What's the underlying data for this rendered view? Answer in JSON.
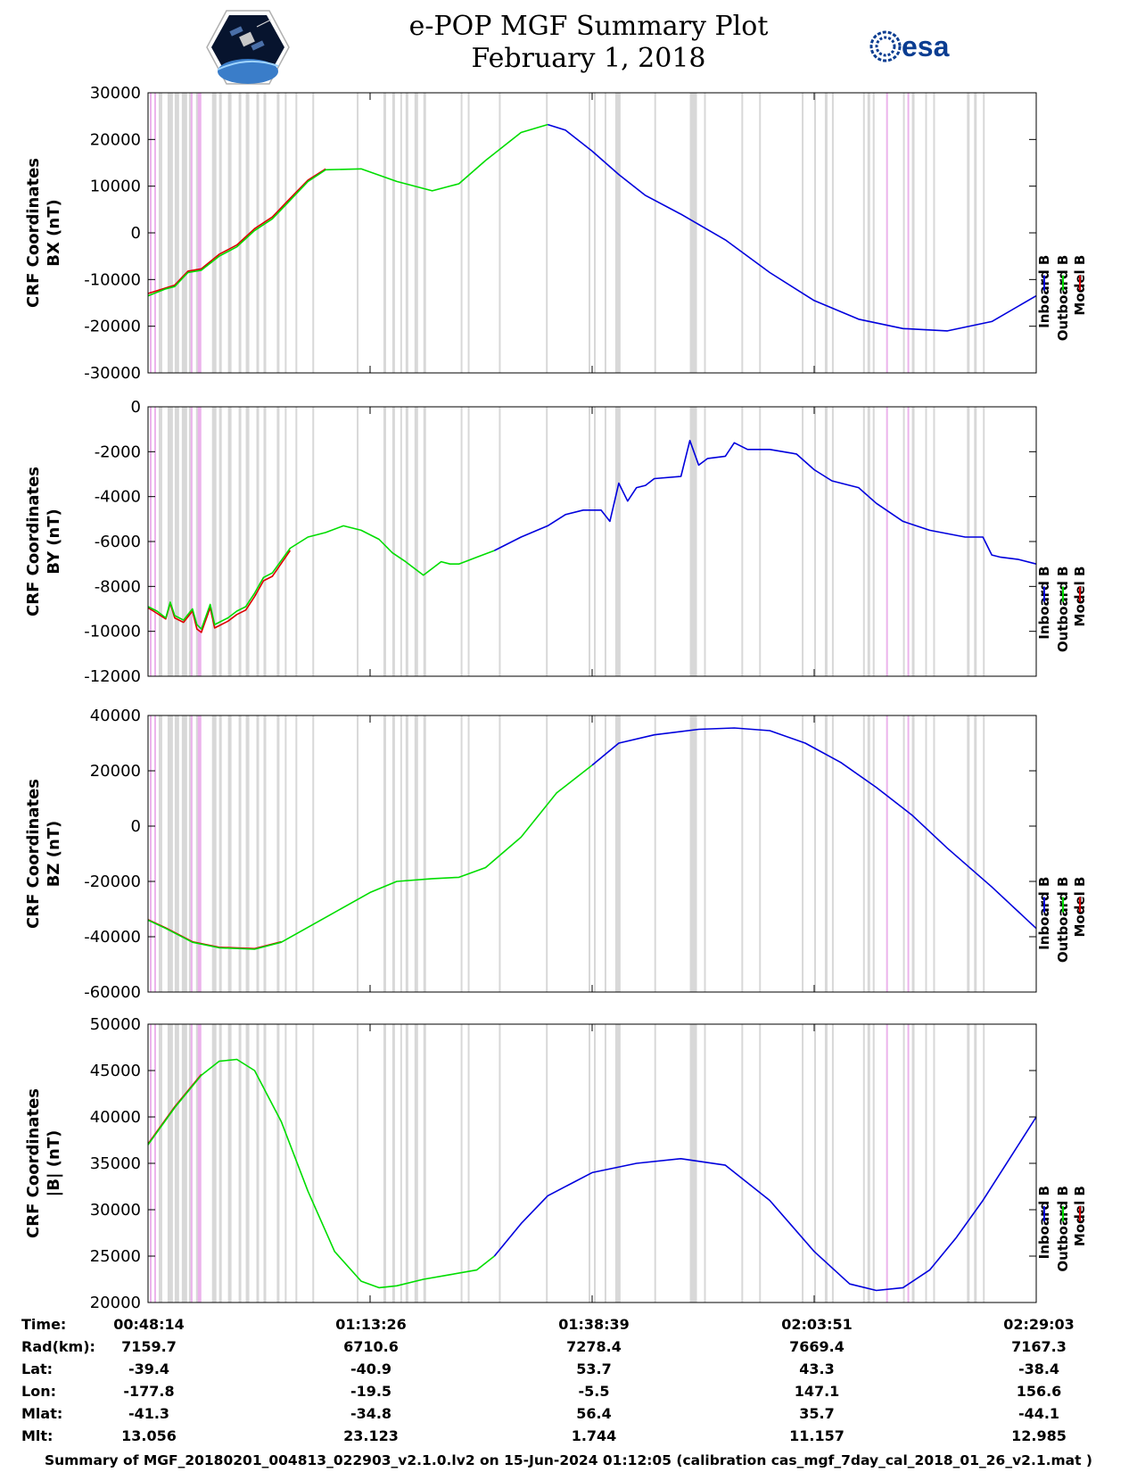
{
  "title": {
    "line1": "e-POP MGF Summary Plot",
    "line2": "February 1, 2018"
  },
  "logos": {
    "left": "cassiope-mission-patch",
    "right": "esa"
  },
  "legend_labels": [
    "Inboard B",
    "Outboard B",
    "Model B"
  ],
  "colors": {
    "inboard": "#0000dd",
    "outboard": "#00dd00",
    "model": "#dd0000",
    "gray_band": "#d8d8d8",
    "pink_band": "#ecb3ec"
  },
  "chart_data": [
    {
      "type": "line",
      "ylabel_line1": "CRF Coordinates",
      "ylabel_line2": "BX (nT)",
      "ylim": [
        -30000,
        30000
      ],
      "yticks": [
        -30000,
        -20000,
        -10000,
        0,
        10000,
        20000,
        30000
      ],
      "xlim": [
        0,
        100
      ],
      "switch_x": 45,
      "series": [
        {
          "name": "Outboard B",
          "x": [
            0,
            2,
            3,
            4.5,
            6,
            8,
            10,
            12,
            14,
            16,
            18,
            20,
            24,
            28,
            32,
            35,
            38,
            42,
            45
          ],
          "values": [
            -13500,
            -12000,
            -11500,
            -8500,
            -8000,
            -5000,
            -3000,
            500,
            3000,
            7000,
            11000,
            13500,
            13700,
            11000,
            9000,
            10500,
            15500,
            21500,
            23200
          ]
        },
        {
          "name": "Inboard B",
          "x": [
            45,
            47,
            50,
            53,
            56,
            60,
            65,
            70,
            75,
            80,
            85,
            90,
            95,
            100
          ],
          "values": [
            23200,
            22000,
            17500,
            12500,
            8000,
            4000,
            -1500,
            -8500,
            -14500,
            -18500,
            -20500,
            -21000,
            -19000,
            -13500
          ]
        },
        {
          "name": "Model B",
          "x": [
            0,
            2,
            3,
            4.5,
            6,
            8,
            10,
            12,
            14,
            16,
            18,
            20
          ],
          "values": [
            -13000,
            -11800,
            -11200,
            -8200,
            -7700,
            -4600,
            -2600,
            900,
            3400,
            7400,
            11300,
            13700
          ]
        }
      ]
    },
    {
      "type": "line",
      "ylabel_line1": "CRF Coordinates",
      "ylabel_line2": "BY (nT)",
      "ylim": [
        -12000,
        0
      ],
      "yticks": [
        -12000,
        -10000,
        -8000,
        -6000,
        -4000,
        -2000,
        0
      ],
      "xlim": [
        0,
        100
      ],
      "switch_x": 39,
      "series": [
        {
          "name": "Outboard B",
          "x": [
            0,
            1,
            2,
            2.5,
            3,
            4,
            5,
            5.5,
            6,
            7,
            7.5,
            8,
            9,
            10,
            11,
            12,
            13,
            14,
            16,
            18,
            20,
            22,
            24,
            26,
            27.5,
            29,
            31,
            33,
            34,
            35,
            37,
            39
          ],
          "values": [
            -8900,
            -9100,
            -9400,
            -8700,
            -9300,
            -9500,
            -9000,
            -9700,
            -9900,
            -8800,
            -9700,
            -9600,
            -9400,
            -9100,
            -8900,
            -8300,
            -7600,
            -7400,
            -6300,
            -5800,
            -5600,
            -5300,
            -5500,
            -5900,
            -6500,
            -6900,
            -7500,
            -6900,
            -7000,
            -7000,
            -6700,
            -6400
          ]
        },
        {
          "name": "Inboard B",
          "x": [
            39,
            42,
            45,
            47,
            49,
            51,
            52,
            53,
            54,
            55,
            56,
            57,
            60,
            61,
            62,
            63,
            65,
            66,
            67.5,
            70,
            73,
            75,
            77,
            80,
            82,
            85,
            88,
            92,
            94,
            95,
            96,
            98,
            100
          ],
          "values": [
            -6400,
            -5800,
            -5300,
            -4800,
            -4600,
            -4600,
            -5100,
            -3400,
            -4200,
            -3600,
            -3500,
            -3200,
            -3100,
            -1500,
            -2600,
            -2300,
            -2200,
            -1600,
            -1900,
            -1900,
            -2100,
            -2800,
            -3300,
            -3600,
            -4300,
            -5100,
            -5500,
            -5800,
            -5800,
            -6600,
            -6700,
            -6800,
            -7000
          ]
        },
        {
          "name": "Model B",
          "x": [
            0,
            1,
            2,
            2.5,
            3,
            4,
            5,
            5.5,
            6,
            7,
            7.5,
            8,
            9,
            10,
            11,
            12,
            13,
            14,
            16
          ],
          "values": [
            -8950,
            -9200,
            -9450,
            -8750,
            -9400,
            -9600,
            -9100,
            -9900,
            -10050,
            -8950,
            -9850,
            -9750,
            -9550,
            -9250,
            -9050,
            -8450,
            -7750,
            -7550,
            -6400
          ]
        }
      ]
    },
    {
      "type": "line",
      "ylabel_line1": "CRF Coordinates",
      "ylabel_line2": "BZ (nT)",
      "ylim": [
        -60000,
        40000
      ],
      "yticks": [
        -60000,
        -40000,
        -20000,
        0,
        20000,
        40000
      ],
      "xlim": [
        0,
        100
      ],
      "switch_x": 50,
      "series": [
        {
          "name": "Outboard B",
          "x": [
            0,
            2,
            5,
            8,
            12,
            15,
            20,
            25,
            28,
            32,
            35,
            38,
            42,
            46,
            50
          ],
          "values": [
            -34000,
            -37000,
            -42000,
            -44000,
            -44500,
            -42000,
            -33000,
            -24000,
            -20000,
            -19000,
            -18500,
            -15000,
            -4000,
            12000,
            22000
          ]
        },
        {
          "name": "Inboard B",
          "x": [
            50,
            53,
            57,
            62,
            66,
            70,
            74,
            78,
            82,
            86,
            90,
            95,
            100
          ],
          "values": [
            22000,
            30000,
            33000,
            35000,
            35500,
            34500,
            30000,
            23000,
            14000,
            4000,
            -8000,
            -22000,
            -37000
          ]
        },
        {
          "name": "Model B",
          "x": [
            0,
            2,
            5,
            8,
            12,
            15
          ],
          "values": [
            -33800,
            -36800,
            -41800,
            -43800,
            -44300,
            -41800
          ]
        }
      ]
    },
    {
      "type": "line",
      "ylabel_line1": "CRF Coordinates",
      "ylabel_line2": "|B| (nT)",
      "ylim": [
        20000,
        50000
      ],
      "yticks": [
        20000,
        25000,
        30000,
        35000,
        40000,
        45000,
        50000
      ],
      "xlim": [
        0,
        100
      ],
      "switch_x": 39,
      "series": [
        {
          "name": "Outboard B",
          "x": [
            0,
            3,
            6,
            8,
            10,
            12,
            15,
            18,
            21,
            24,
            26,
            28,
            31,
            34,
            37,
            39
          ],
          "values": [
            37000,
            41000,
            44500,
            46000,
            46200,
            45000,
            39500,
            32000,
            25500,
            22300,
            21600,
            21800,
            22500,
            23000,
            23500,
            25000
          ]
        },
        {
          "name": "Inboard B",
          "x": [
            39,
            42,
            45,
            50,
            55,
            60,
            65,
            70,
            75,
            79,
            82,
            85,
            88,
            91,
            94,
            97,
            100
          ],
          "values": [
            25000,
            28500,
            31500,
            34000,
            35000,
            35500,
            34800,
            31000,
            25500,
            22000,
            21300,
            21600,
            23500,
            27000,
            31000,
            35500,
            40000
          ]
        },
        {
          "name": "Model B",
          "x": [
            0,
            3,
            6
          ],
          "values": [
            37100,
            41100,
            44600
          ]
        }
      ]
    }
  ],
  "shading": {
    "gray": [
      [
        1.2,
        1.6
      ],
      [
        2.2,
        2.8
      ],
      [
        3.0,
        3.5
      ],
      [
        3.8,
        4.4
      ],
      [
        4.6,
        5.0
      ],
      [
        5.4,
        5.8
      ],
      [
        7.2,
        7.7
      ],
      [
        8.0,
        8.3
      ],
      [
        9.0,
        9.4
      ],
      [
        10.2,
        10.5
      ],
      [
        11.0,
        11.4
      ],
      [
        12.2,
        12.5
      ],
      [
        13.0,
        13.3
      ],
      [
        14.5,
        14.8
      ],
      [
        15.4,
        15.6
      ],
      [
        16.6,
        16.8
      ],
      [
        18.5,
        18.7
      ],
      [
        23.5,
        23.7
      ],
      [
        26.5,
        26.8
      ],
      [
        27.5,
        27.8
      ],
      [
        28.4,
        28.6
      ],
      [
        29.0,
        29.3
      ],
      [
        30.0,
        30.4
      ],
      [
        31.0,
        31.3
      ],
      [
        35.2,
        35.4
      ],
      [
        36.0,
        36.2
      ],
      [
        39.5,
        39.7
      ],
      [
        44.8,
        45.0
      ],
      [
        49.6,
        49.8
      ],
      [
        50.2,
        50.4
      ],
      [
        51.4,
        51.6
      ],
      [
        52.6,
        53.2
      ],
      [
        57.0,
        57.2
      ],
      [
        61.0,
        61.8
      ],
      [
        62.6,
        62.8
      ],
      [
        66.8,
        67.0
      ],
      [
        68.8,
        69.0
      ],
      [
        73.6,
        73.8
      ],
      [
        75.0,
        75.2
      ],
      [
        76.2,
        76.5
      ],
      [
        77.0,
        77.2
      ],
      [
        80.5,
        80.7
      ],
      [
        81.0,
        81.3
      ],
      [
        81.6,
        81.8
      ],
      [
        85.0,
        85.2
      ],
      [
        86.0,
        86.3
      ],
      [
        87.5,
        87.7
      ],
      [
        88.4,
        88.6
      ],
      [
        92.2,
        92.5
      ],
      [
        93.0,
        93.3
      ],
      [
        94.0,
        94.2
      ]
    ],
    "pink": [
      [
        0.2,
        0.4
      ],
      [
        0.7,
        0.9
      ],
      [
        4.8,
        5.0
      ],
      [
        5.6,
        6.0
      ],
      [
        83.1,
        83.3
      ],
      [
        85.5,
        85.7
      ]
    ]
  },
  "time_axis": {
    "row_labels": [
      "Time:",
      "Rad(km):",
      "Lat:",
      "Lon:",
      "Mlat:",
      "Mlt:"
    ],
    "columns": [
      {
        "values": [
          "00:48:14",
          "7159.7",
          "-39.4",
          "-177.8",
          "-41.3",
          "13.056"
        ]
      },
      {
        "values": [
          "01:13:26",
          "6710.6",
          "-40.9",
          "-19.5",
          "-34.8",
          "23.123"
        ]
      },
      {
        "values": [
          "01:38:39",
          "7278.4",
          "53.7",
          "-5.5",
          "56.4",
          "1.744"
        ]
      },
      {
        "values": [
          "02:03:51",
          "7669.4",
          "43.3",
          "147.1",
          "35.7",
          "11.157"
        ]
      },
      {
        "values": [
          "02:29:03",
          "7167.3",
          "-38.4",
          "156.6",
          "-44.1",
          "12.985"
        ]
      }
    ]
  },
  "footer": "Summary of MGF_20180201_004813_022903_v2.1.0.lv2 on 15-Jun-2024 01:12:05 (calibration cas_mgf_7day_cal_2018_01_26_v2.1.mat )"
}
